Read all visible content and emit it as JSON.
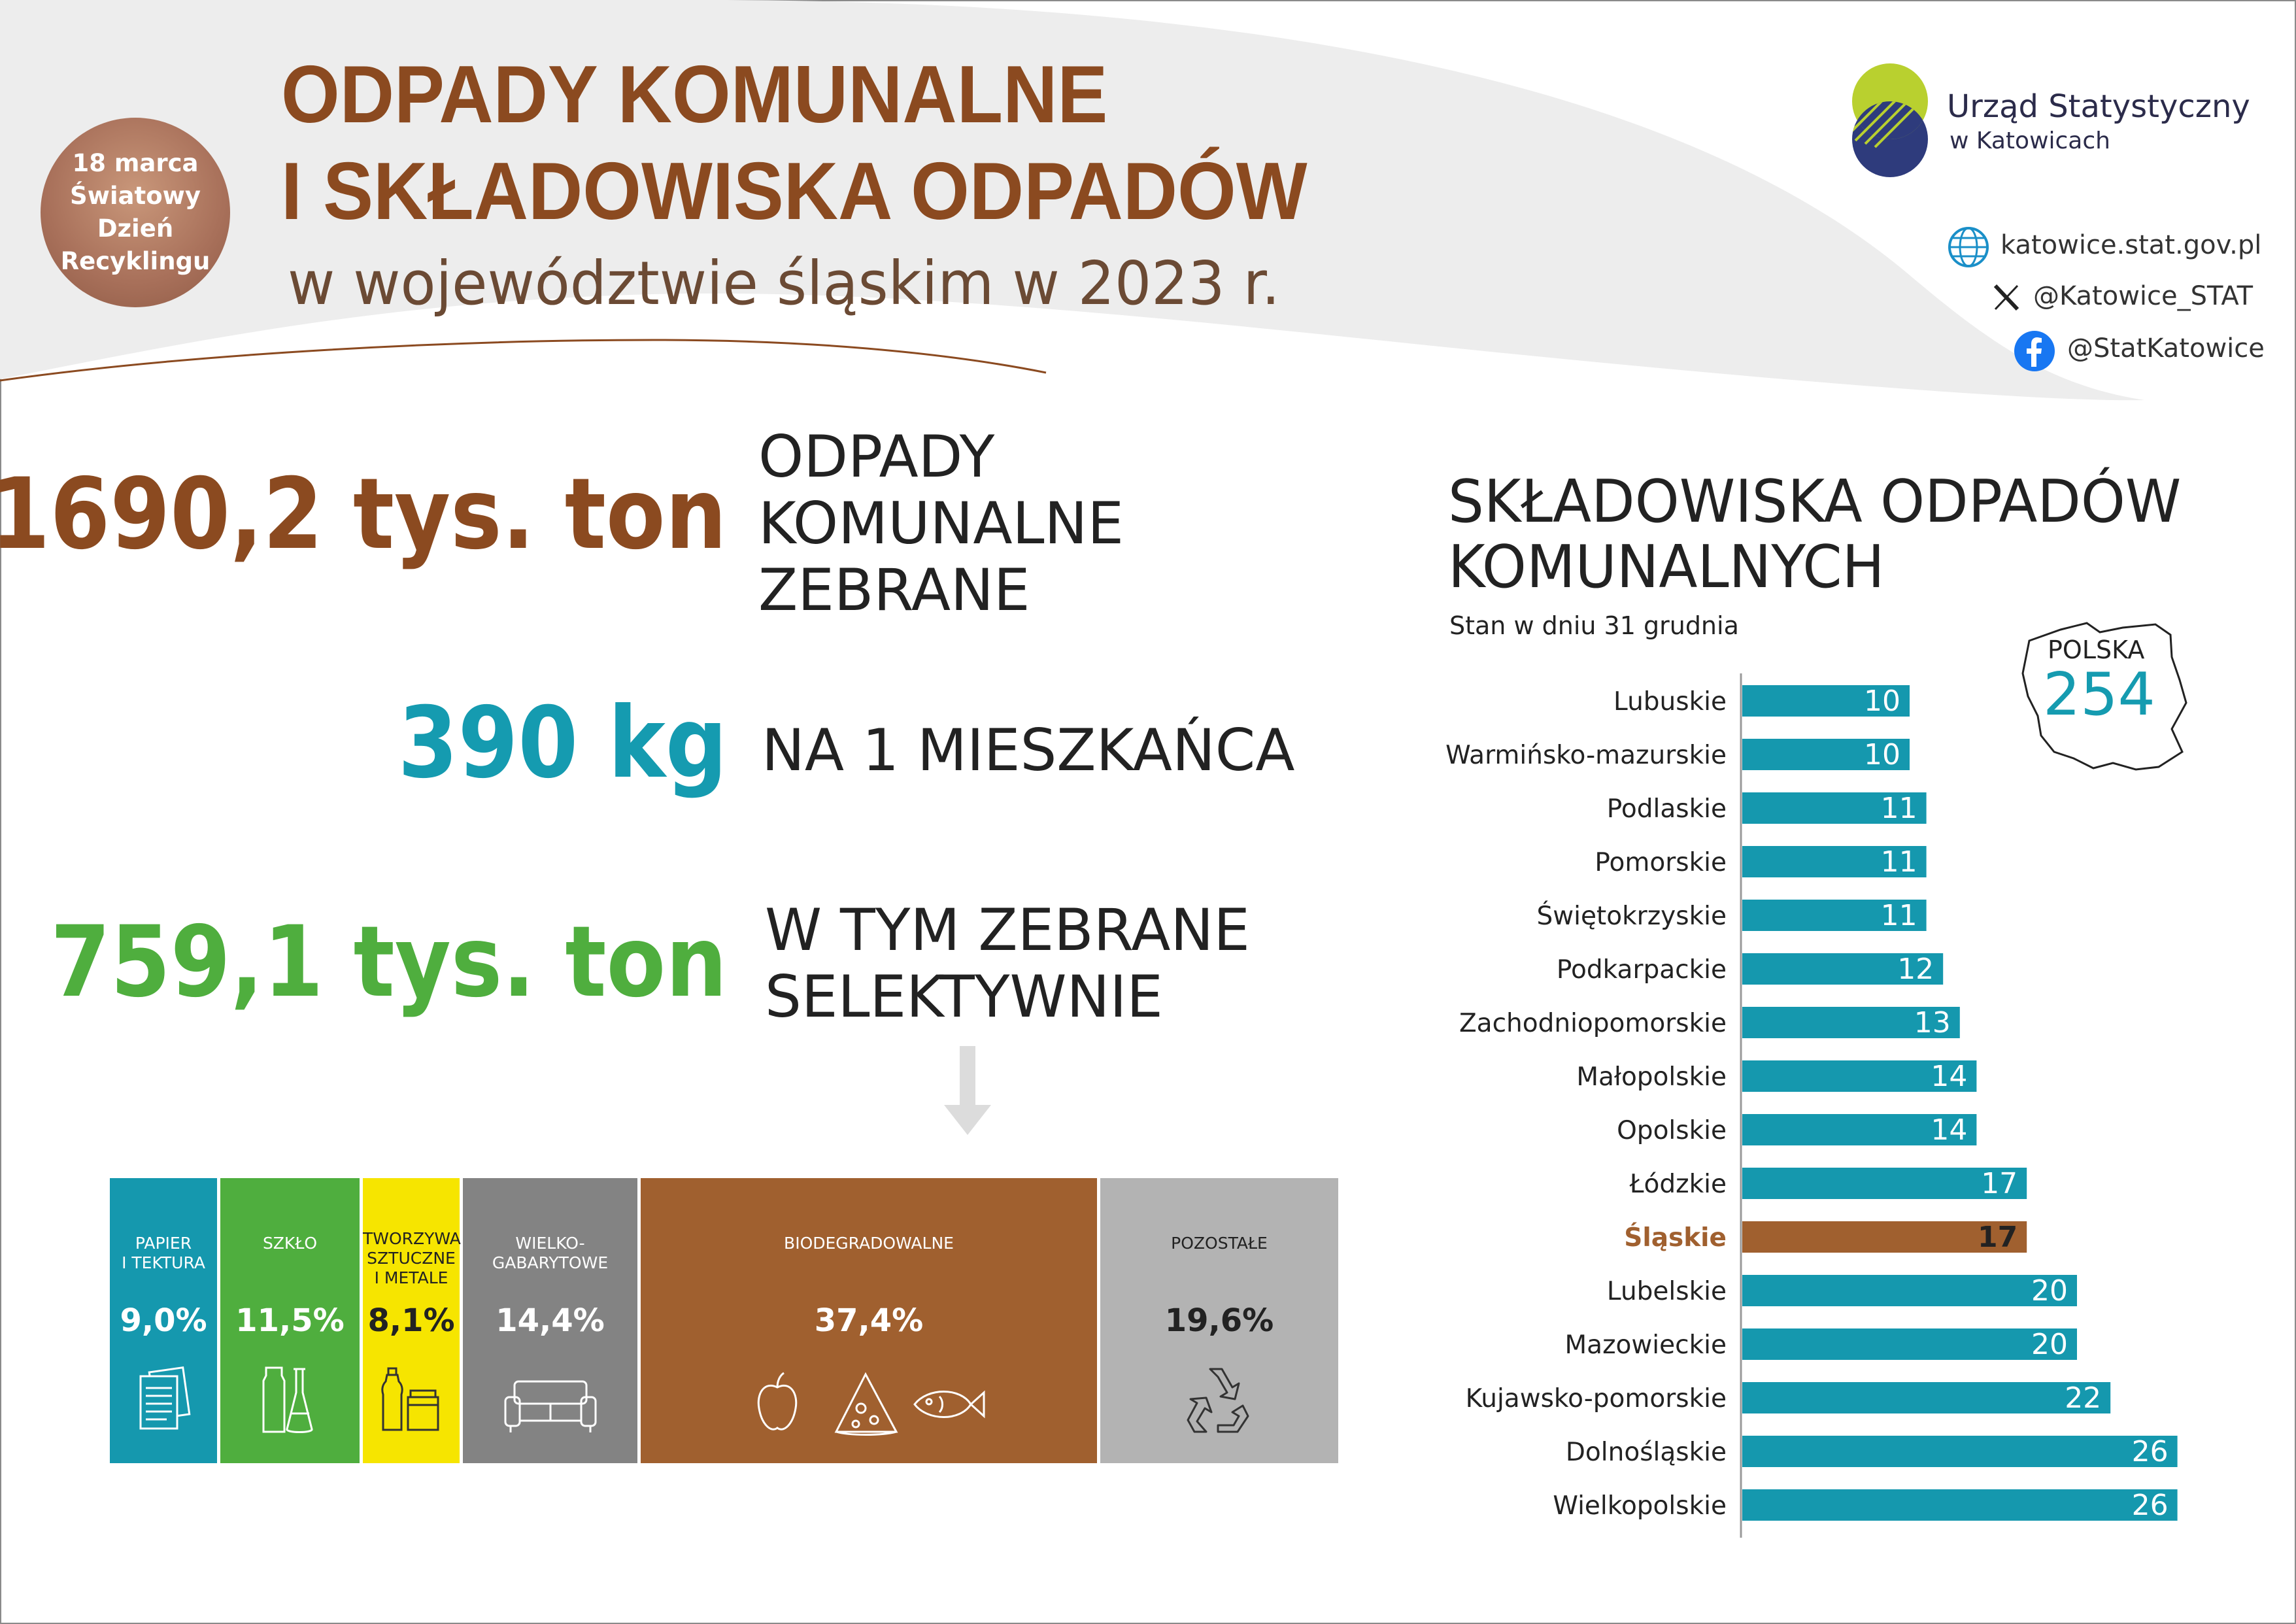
{
  "badge": {
    "line1": "18 marca",
    "line2": "Światowy",
    "line3": "Dzień",
    "line4": "Recyklingu"
  },
  "header": {
    "title_line1": "ODPADY KOMUNALNE",
    "title_line2": "I SKŁADOWISKA ODPADÓW",
    "subtitle": "w województwie śląskim w 2023 r."
  },
  "logo": {
    "name": "Urząd Statystyczny",
    "city": "w Katowicach",
    "icon": "office-logo-icon"
  },
  "social": {
    "website": "katowice.stat.gov.pl",
    "x": "@Katowice_STAT",
    "facebook": "@StatKatowice"
  },
  "stats": [
    {
      "value": "1690,2 tys. ton",
      "desc": [
        "ODPADY",
        "KOMUNALNE",
        "ZEBRANE"
      ],
      "color": "#8b4a20"
    },
    {
      "value": "390 kg",
      "desc": [
        "NA 1 MIESZKAŃCA"
      ],
      "color": "#159bb0"
    },
    {
      "value": "759,1 tys. ton",
      "desc": [
        "W TYM ZEBRANE",
        "SELEKTYWNIE"
      ],
      "color": "#4fae3e"
    }
  ],
  "selective": [
    {
      "label": [
        "PAPIER",
        "I TEKTURA"
      ],
      "percent": "9,0%",
      "share": 9.0,
      "color": "#1598ae",
      "icon": "paper-icon"
    },
    {
      "label": [
        "SZKŁO"
      ],
      "percent": "11,5%",
      "share": 11.5,
      "color": "#4fae3e",
      "icon": "glass-icon"
    },
    {
      "label": [
        "TWORZYWA",
        "SZTUCZNE",
        "I METALE"
      ],
      "percent": "8,1%",
      "share": 8.1,
      "color": "#f6e500",
      "icon": "plastic-icon"
    },
    {
      "label": [
        "WIELKO-",
        "GABARYTOWE"
      ],
      "percent": "14,4%",
      "share": 14.4,
      "color": "#838383",
      "icon": "sofa-icon"
    },
    {
      "label": [
        "BIODEGRADOWALNE"
      ],
      "percent": "37,4%",
      "share": 37.4,
      "color": "#a0602f",
      "icon": "food-icon"
    },
    {
      "label": [
        "POZOSTAŁE"
      ],
      "percent": "19,6%",
      "share": 19.6,
      "color": "#b3b3b3",
      "icon": "recycle-icon"
    }
  ],
  "chart_data": {
    "type": "bar",
    "orientation": "horizontal",
    "title": "SKŁADOWISKA ODPADÓW KOMUNALNYCH",
    "title_line1": "SKŁADOWISKA ODPADÓW",
    "title_line2": "KOMUNALNYCH",
    "subtitle": "Stan w dniu 31 grudnia",
    "categories": [
      "Lubuskie",
      "Warmińsko-mazurskie",
      "Podlaskie",
      "Pomorskie",
      "Świętokrzyskie",
      "Podkarpackie",
      "Zachodniopomorskie",
      "Małopolskie",
      "Opolskie",
      "Łódzkie",
      "Śląskie",
      "Lubelskie",
      "Mazowieckie",
      "Kujawsko-pomorskie",
      "Dolnośląskie",
      "Wielkopolskie"
    ],
    "values": [
      10,
      10,
      11,
      11,
      11,
      12,
      13,
      14,
      14,
      17,
      17,
      20,
      20,
      22,
      26,
      26
    ],
    "highlight": "Śląskie",
    "bar_color": "#1598ae",
    "highlight_color": "#a0602f",
    "total_label": "POLSKA",
    "total_value": 254,
    "grid": false
  }
}
